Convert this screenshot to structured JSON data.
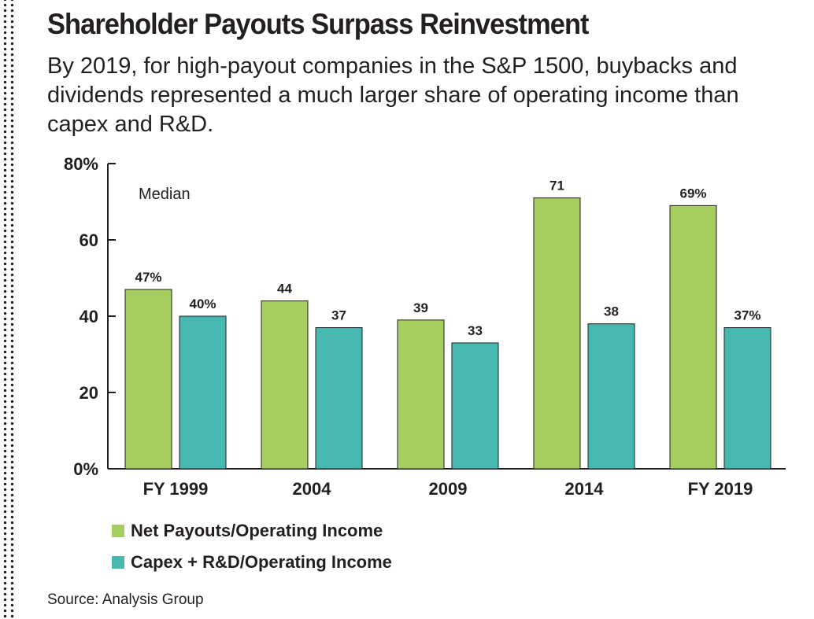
{
  "title": "Shareholder Payouts Surpass Reinvestment",
  "subtitle": "By 2019, for high-payout companies in the S&P 1500, buybacks and dividends represented a much larger share of operating income than capex and R&D.",
  "source": "Source: Analysis Group",
  "chart_data": {
    "type": "bar",
    "categories": [
      "FY 1999",
      "2004",
      "2009",
      "2014",
      "FY 2019"
    ],
    "series": [
      {
        "name": "Net Payouts/Operating Income",
        "color": "#a6cd5f",
        "values": [
          47,
          44,
          39,
          71,
          69
        ],
        "labels": [
          "47%",
          "44",
          "39",
          "71",
          "69%"
        ]
      },
      {
        "name": "Capex + R&D/Operating Income",
        "color": "#46b8b0",
        "values": [
          40,
          37,
          33,
          38,
          37
        ],
        "labels": [
          "40%",
          "37",
          "33",
          "38",
          "37%"
        ]
      }
    ],
    "ylim": [
      0,
      80
    ],
    "yticks": [
      0,
      20,
      40,
      60,
      80
    ],
    "ytick_labels": [
      "0%",
      "20",
      "40",
      "60",
      "80%"
    ],
    "annotation": "Median",
    "grid": false,
    "legend_position": "bottom-left"
  }
}
